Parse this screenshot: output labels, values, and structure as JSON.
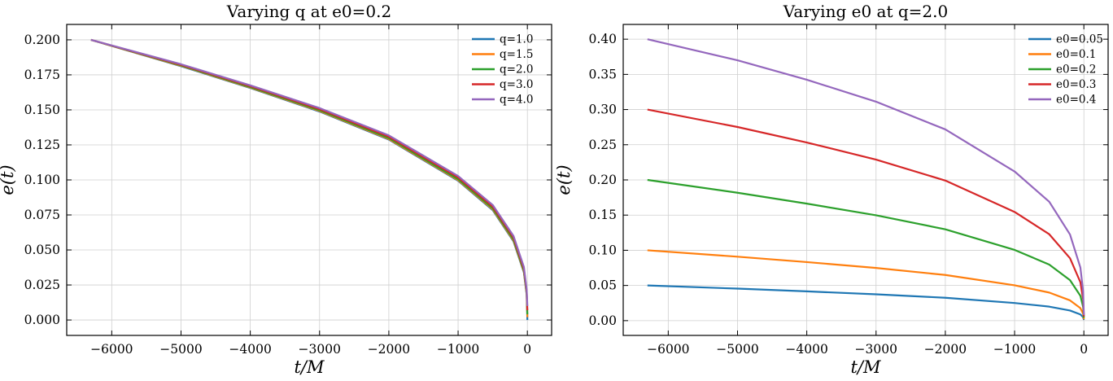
{
  "chart_data": [
    {
      "type": "line",
      "title": "Varying q at e0=0.2",
      "xlabel": "t/M",
      "ylabel": "e(t)",
      "xlim": [
        -6650,
        350
      ],
      "ylim": [
        -0.011,
        0.211
      ],
      "xticks": [
        -6000,
        -5000,
        -4000,
        -3000,
        -2000,
        -1000,
        0
      ],
      "xtick_labels": [
        "−6000",
        "−5000",
        "−4000",
        "−3000",
        "−2000",
        "−1000",
        "0"
      ],
      "yticks": [
        0,
        0.025,
        0.05,
        0.075,
        0.1,
        0.125,
        0.15,
        0.175,
        0.2
      ],
      "ytick_labels": [
        "0.000",
        "0.025",
        "0.050",
        "0.075",
        "0.100",
        "0.125",
        "0.150",
        "0.175",
        "0.200"
      ],
      "grid": true,
      "legend": "top-right",
      "series": [
        {
          "name": "q=1.0",
          "color": "#1f77b4",
          "x": [
            -6300,
            -5000,
            -4000,
            -3000,
            -2000,
            -1000,
            -500,
            -200,
            -50,
            -10,
            0
          ],
          "y": [
            0.2,
            0.1812,
            0.1656,
            0.1488,
            0.1288,
            0.0994,
            0.0784,
            0.0561,
            0.0339,
            0.018,
            0.0
          ]
        },
        {
          "name": "q=1.5",
          "color": "#ff7f0e",
          "x": [
            -6300,
            -5000,
            -4000,
            -3000,
            -2000,
            -1000,
            -500,
            -200,
            -50,
            -10,
            0
          ],
          "y": [
            0.2,
            0.1815,
            0.1659,
            0.1492,
            0.1292,
            0.0998,
            0.079,
            0.0567,
            0.0345,
            0.0185,
            0.002
          ]
        },
        {
          "name": "q=2.0",
          "color": "#2ca02c",
          "x": [
            -6300,
            -5000,
            -4000,
            -3000,
            -2000,
            -1000,
            -500,
            -200,
            -50,
            -10,
            0
          ],
          "y": [
            0.2,
            0.1818,
            0.1663,
            0.1497,
            0.1298,
            0.1005,
            0.0797,
            0.0575,
            0.0353,
            0.0192,
            0.004
          ]
        },
        {
          "name": "q=3.0",
          "color": "#d62728",
          "x": [
            -6300,
            -5000,
            -4000,
            -3000,
            -2000,
            -1000,
            -500,
            -200,
            -50,
            -10,
            0
          ],
          "y": [
            0.2,
            0.1822,
            0.1669,
            0.1505,
            0.1308,
            0.1017,
            0.0809,
            0.0588,
            0.0366,
            0.0205,
            0.007
          ]
        },
        {
          "name": "q=4.0",
          "color": "#9467bd",
          "x": [
            -6300,
            -5000,
            -4000,
            -3000,
            -2000,
            -1000,
            -500,
            -200,
            -50,
            -10,
            0
          ],
          "y": [
            0.2,
            0.1826,
            0.1675,
            0.1513,
            0.1318,
            0.1028,
            0.0821,
            0.06,
            0.0378,
            0.0217,
            0.01
          ]
        }
      ]
    },
    {
      "type": "line",
      "title": "Varying e0 at q=2.0",
      "xlabel": "t/M",
      "ylabel": "e(t)",
      "xlim": [
        -6650,
        350
      ],
      "ylim": [
        -0.021,
        0.421
      ],
      "xticks": [
        -6000,
        -5000,
        -4000,
        -3000,
        -2000,
        -1000,
        0
      ],
      "xtick_labels": [
        "−6000",
        "−5000",
        "−4000",
        "−3000",
        "−2000",
        "−1000",
        "0"
      ],
      "yticks": [
        0,
        0.05,
        0.1,
        0.15,
        0.2,
        0.25,
        0.3,
        0.35,
        0.4
      ],
      "ytick_labels": [
        "0.00",
        "0.05",
        "0.10",
        "0.15",
        "0.20",
        "0.25",
        "0.30",
        "0.35",
        "0.40"
      ],
      "grid": true,
      "legend": "top-right",
      "series": [
        {
          "name": "e0=0.05",
          "color": "#1f77b4",
          "x": [
            -6300,
            -5000,
            -4000,
            -3000,
            -2000,
            -1000,
            -500,
            -200,
            -50,
            -10,
            0
          ],
          "y": [
            0.05,
            0.0455,
            0.0416,
            0.0374,
            0.0325,
            0.0251,
            0.0199,
            0.0144,
            0.0088,
            0.0048,
            0.001
          ]
        },
        {
          "name": "e0=0.1",
          "color": "#ff7f0e",
          "x": [
            -6300,
            -5000,
            -4000,
            -3000,
            -2000,
            -1000,
            -500,
            -200,
            -50,
            -10,
            0
          ],
          "y": [
            0.1,
            0.0909,
            0.0832,
            0.0749,
            0.0649,
            0.0502,
            0.0399,
            0.0288,
            0.0177,
            0.0096,
            0.002
          ]
        },
        {
          "name": "e0=0.2",
          "color": "#2ca02c",
          "x": [
            -6300,
            -5000,
            -4000,
            -3000,
            -2000,
            -1000,
            -500,
            -200,
            -50,
            -10,
            0
          ],
          "y": [
            0.2,
            0.1818,
            0.1663,
            0.1497,
            0.1298,
            0.1005,
            0.0797,
            0.0575,
            0.0353,
            0.0192,
            0.004
          ]
        },
        {
          "name": "e0=0.3",
          "color": "#d62728",
          "x": [
            -6300,
            -5000,
            -4000,
            -3000,
            -2000,
            -1000,
            -500,
            -200,
            -50,
            -10,
            0
          ],
          "y": [
            0.3,
            0.2752,
            0.2532,
            0.2289,
            0.1991,
            0.1545,
            0.1228,
            0.0887,
            0.0545,
            0.0297,
            0.006
          ]
        },
        {
          "name": "e0=0.4",
          "color": "#9467bd",
          "x": [
            -6300,
            -5000,
            -4000,
            -3000,
            -2000,
            -1000,
            -500,
            -200,
            -50,
            -10,
            0
          ],
          "y": [
            0.4,
            0.37,
            0.3424,
            0.3112,
            0.2718,
            0.212,
            0.169,
            0.1224,
            0.0754,
            0.0411,
            0.008
          ]
        }
      ]
    }
  ]
}
